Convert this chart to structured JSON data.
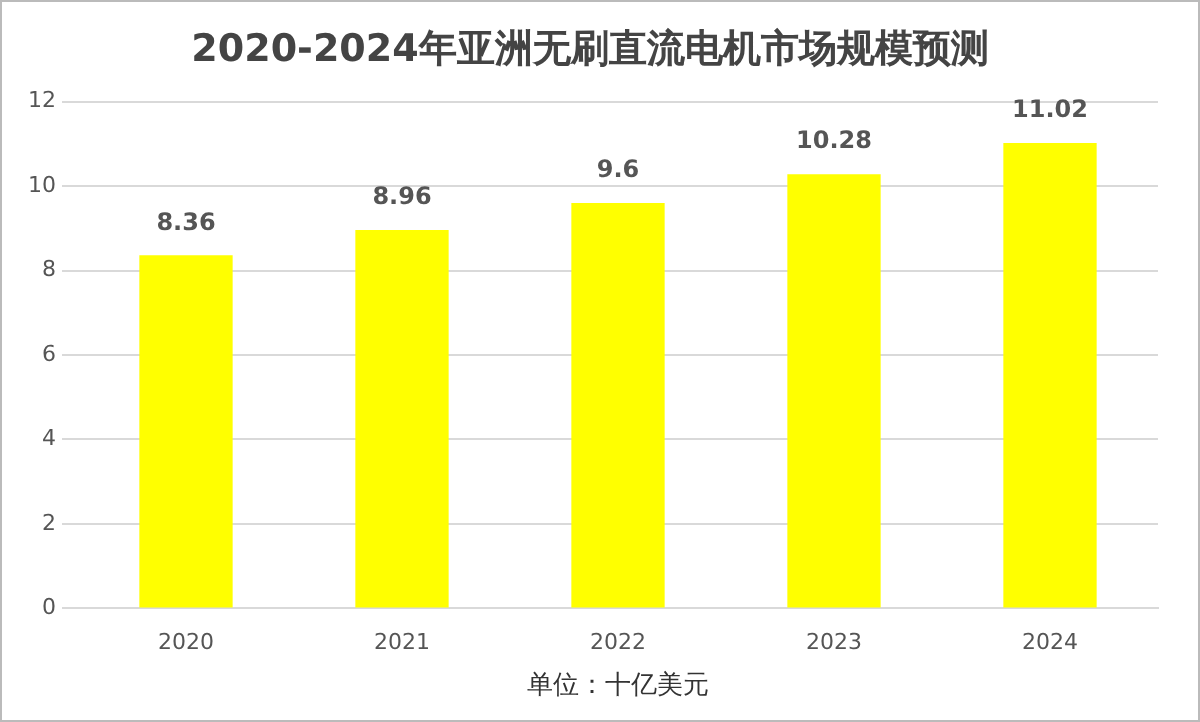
{
  "chart_data": {
    "type": "bar",
    "title": "2020-2024年亚洲无刷直流电机市场规模预测",
    "xlabel": "单位：十亿美元",
    "categories": [
      "2020",
      "2021",
      "2022",
      "2023",
      "2024"
    ],
    "values": [
      8.36,
      8.96,
      9.6,
      10.28,
      11.02
    ],
    "color": "#ffff00",
    "ylim": [
      0,
      12
    ],
    "yticks": [
      0,
      2,
      4,
      6,
      8,
      10,
      12
    ],
    "grid": "y",
    "data_labels": true,
    "legend": false
  }
}
